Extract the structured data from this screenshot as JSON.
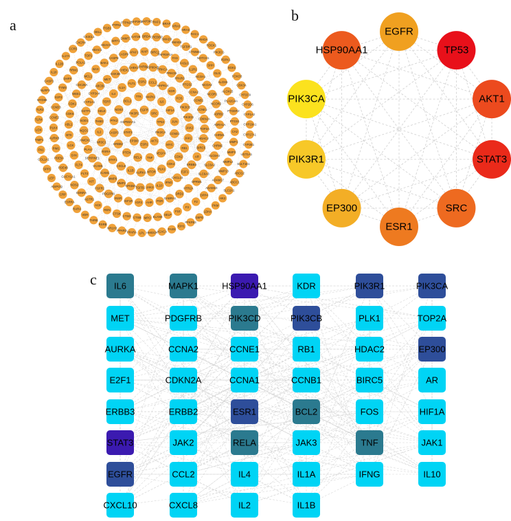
{
  "labels": {
    "a": "a",
    "b": "b",
    "c": "c"
  },
  "colors": {
    "orange_node": "#F0A23A",
    "edge": "#c8c8c8",
    "c_light": "#00D4F5",
    "c_teal": "#2B7A8F",
    "c_blue": "#2E4E9A",
    "c_purple": "#3B1AB0"
  },
  "panel_a": {
    "rings": [
      [
        "EGFR",
        "SRC",
        "TP53",
        "PIK3CA",
        "AKT1",
        "ESR1",
        "EP300",
        "STAT3",
        "HSP90AA1",
        "PIK3R1"
      ],
      [
        "MAPK1",
        "IL6",
        "HIF1A",
        "JUN",
        "CCND1",
        "MYC",
        "VEGFA",
        "TNF",
        "RELA",
        "PTEN",
        "ERBB2",
        "CASP3",
        "PTK2",
        "NOS3",
        "BCL2",
        "TTK"
      ],
      [
        "MAPK14",
        "KDR",
        "FOS",
        "PIK3CB",
        "PIK3CD",
        "JAK2",
        "JAK1",
        "RB1",
        "CDK2",
        "CDK4",
        "PLK1",
        "MTOR",
        "AURKA",
        "IL1B",
        "CXCL8",
        "STAT1",
        "RXRA",
        "NR3C1",
        "IL2",
        "THBD",
        "SELE",
        "TERT",
        "IL4",
        "IL1A",
        "FLT1",
        "ESR2",
        "CCL2"
      ],
      [
        "PPARG",
        "PTGS2",
        "CCNA2",
        "CCNB1",
        "CCNE1",
        "CDKN2A",
        "TOP2A",
        "HDAC2",
        "BIRC5",
        "AR",
        "ERBB3",
        "E2F1",
        "CXCL10",
        "IFNG",
        "IL10",
        "JAK3",
        "TGFB1",
        "NFKBIA",
        "MMP2",
        "MMP9",
        "ICAM1",
        "VCAM1",
        "SERPINE1",
        "PLAU",
        "HMOX1",
        "NQO1",
        "SOD1",
        "GSTP1",
        "CYP1A1",
        "CYP3A4",
        "ABCB1",
        "MET",
        "GSK3B",
        "CHEK1",
        "CHEK2",
        "PARP1",
        "HSP90AB1",
        "PRKCA",
        "PRKCB"
      ],
      [
        "NCOA1",
        "NCOA2",
        "NCOR1",
        "NCOR2",
        "ADRB2",
        "ADRA1A",
        "CHRM1",
        "CHRM2",
        "SLC6A4",
        "SLC6A2",
        "SLC6A3",
        "OPRM1",
        "HTR2A",
        "DRD2",
        "GABRA1",
        "PGR",
        "AHR",
        "IGF2",
        "IGF1R",
        "INSR",
        "PDGFRB",
        "FGFR1",
        "KIT",
        "FLT3",
        "FLT4",
        "SYK",
        "LCK",
        "BTK",
        "ABL1",
        "CDK6",
        "CDK1",
        "WEE1",
        "CDC25A",
        "MCL1",
        "BAX",
        "BAK1",
        "CASP8",
        "CASP9",
        "APAF1",
        "XIAP",
        "BIRC2",
        "TNFRSF1A",
        "FAS",
        "FASLG",
        "IL1R1"
      ],
      [
        "ALOX5",
        "ALOX15",
        "PLA2G4A",
        "PTGER2",
        "PTGS1",
        "CA2",
        "MMP1",
        "MMP3",
        "MMP12",
        "MMP13",
        "ADAM17",
        "ADAM10",
        "DPP4",
        "F2",
        "F3",
        "F10",
        "SELP",
        "ELANE",
        "MPO",
        "CTSB",
        "CTSD",
        "CTSK",
        "REN",
        "ACE",
        "AGTR1",
        "EDNRA",
        "NOS2",
        "GUCY1A1",
        "PDE4B",
        "PDE5A",
        "PIM1",
        "AURKB",
        "PLK4",
        "CCNE2",
        "CCND3",
        "E2F2",
        "TYMS",
        "DHFR",
        "RRM1",
        "POLA1",
        "TOP1",
        "HDAC1",
        "HDAC6",
        "SIRT1",
        "DNMT1",
        "KAT2B",
        "BRD4",
        "CREBBP",
        "SMAD3",
        "SMAD4",
        "TGFBR1",
        "CTNNB1",
        "NOTCH1",
        "SHH",
        "GLI1"
      ],
      [
        "CYP2C9",
        "CYP2D6",
        "CYP1A2",
        "CYP19A1",
        "CYP17A1",
        "CYP2E1",
        "UGT1A1",
        "SULT1E1",
        "ABCG2",
        "ABCC1",
        "SLC2A1",
        "HK2",
        "PKM",
        "LDHA",
        "G6PD",
        "PFKFB3",
        "IDH1",
        "FASN",
        "ACACA",
        "HMGCR",
        "LPL",
        "PPARA",
        "PPARD",
        "NR1H3",
        "RXRB",
        "THRB",
        "VDR",
        "RARA",
        "ESRRA",
        "CRP",
        "ADIPOQ",
        "LEP",
        "SPP1",
        "COL1A1",
        "FN1",
        "TIMP1",
        "LOX",
        "TLR4",
        "TLR2",
        "MYD88",
        "NLRP3",
        "CASP1",
        "IL18",
        "IL12B",
        "IL17A",
        "CCR5",
        "CXCR4",
        "CX3CL1",
        "SELL",
        "ITGB1",
        "PTPN1",
        "PTPN11",
        "MAP2K1",
        "MAP3K5",
        "RAF1",
        "BRAF",
        "KRAS",
        "HRAS",
        "RAC1",
        "RHOA",
        "ROCK1",
        "PIK3CG",
        "PDPK1",
        "SGK1",
        "FOXO3",
        "GSK3A"
      ]
    ]
  },
  "panel_b": {
    "nodes": [
      {
        "label": "EGFR",
        "color": "#F0A020"
      },
      {
        "label": "TP53",
        "color": "#E8101A"
      },
      {
        "label": "AKT1",
        "color": "#EC4A1E"
      },
      {
        "label": "STAT3",
        "color": "#EA2A1A"
      },
      {
        "label": "SRC",
        "color": "#EE6A20"
      },
      {
        "label": "ESR1",
        "color": "#EE7A20"
      },
      {
        "label": "EP300",
        "color": "#F3AE26"
      },
      {
        "label": "PIK3R1",
        "color": "#F7C828"
      },
      {
        "label": "PIK3CA",
        "color": "#FBE21E"
      },
      {
        "label": "HSP90AA1",
        "color": "#EC5A1E"
      }
    ]
  },
  "panel_c": {
    "rows": [
      [
        {
          "label": "IL6",
          "shade": "teal"
        },
        {
          "label": "MAPK1",
          "shade": "teal"
        },
        {
          "label": "HSP90AA1",
          "shade": "purple"
        },
        {
          "label": "KDR",
          "shade": "light"
        },
        {
          "label": "PIK3R1",
          "shade": "blue"
        },
        {
          "label": "PIK3CA",
          "shade": "blue"
        }
      ],
      [
        {
          "label": "MET",
          "shade": "light"
        },
        {
          "label": "PDGFRB",
          "shade": "light"
        },
        {
          "label": "PIK3CD",
          "shade": "teal"
        },
        {
          "label": "PIK3CB",
          "shade": "blue"
        },
        {
          "label": "PLK1",
          "shade": "light"
        },
        {
          "label": "TOP2A",
          "shade": "light"
        }
      ],
      [
        {
          "label": "AURKA",
          "shade": "light"
        },
        {
          "label": "CCNA2",
          "shade": "light"
        },
        {
          "label": "CCNE1",
          "shade": "light"
        },
        {
          "label": "RB1",
          "shade": "light"
        },
        {
          "label": "HDAC2",
          "shade": "light"
        },
        {
          "label": "EP300",
          "shade": "blue"
        }
      ],
      [
        {
          "label": "E2F1",
          "shade": "light"
        },
        {
          "label": "CDKN2A",
          "shade": "light"
        },
        {
          "label": "CCNA1",
          "shade": "light"
        },
        {
          "label": "CCNB1",
          "shade": "light"
        },
        {
          "label": "BIRC5",
          "shade": "light"
        },
        {
          "label": "AR",
          "shade": "light"
        }
      ],
      [
        {
          "label": "ERBB3",
          "shade": "light"
        },
        {
          "label": "ERBB2",
          "shade": "light"
        },
        {
          "label": "ESR1",
          "shade": "blue"
        },
        {
          "label": "BCL2",
          "shade": "teal"
        },
        {
          "label": "FOS",
          "shade": "light"
        },
        {
          "label": "HIF1A",
          "shade": "light"
        }
      ],
      [
        {
          "label": "STAT3",
          "shade": "purple"
        },
        {
          "label": "JAK2",
          "shade": "light"
        },
        {
          "label": "RELA",
          "shade": "teal"
        },
        {
          "label": "JAK3",
          "shade": "light"
        },
        {
          "label": "TNF",
          "shade": "teal"
        },
        {
          "label": "JAK1",
          "shade": "light"
        }
      ],
      [
        {
          "label": "EGFR",
          "shade": "blue"
        },
        {
          "label": "CCL2",
          "shade": "light"
        },
        {
          "label": "IL4",
          "shade": "light"
        },
        {
          "label": "IL1A",
          "shade": "light"
        },
        {
          "label": "IFNG",
          "shade": "light"
        },
        {
          "label": "IL10",
          "shade": "light"
        }
      ],
      [
        {
          "label": "CXCL10",
          "shade": "light"
        },
        {
          "label": "CXCL8",
          "shade": "light"
        },
        {
          "label": "IL2",
          "shade": "light"
        },
        {
          "label": "IL1B",
          "shade": "light"
        }
      ]
    ]
  }
}
